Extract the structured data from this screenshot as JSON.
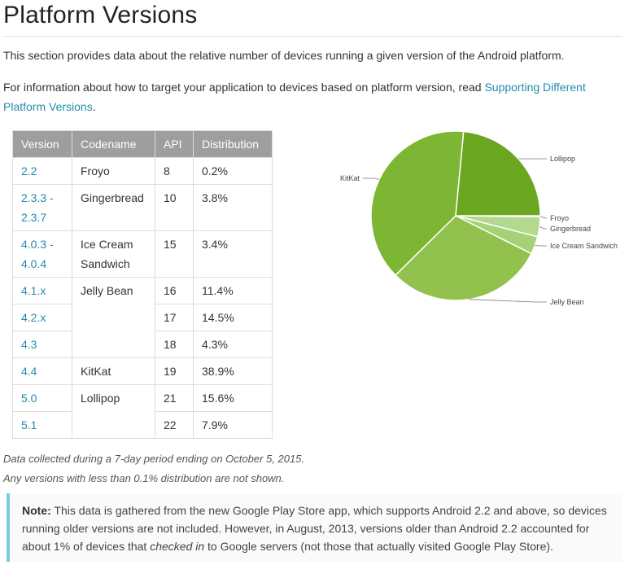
{
  "page": {
    "title": "Platform Versions",
    "intro": "This section provides data about the relative number of devices running a given version of the Android platform.",
    "target_text": "For information about how to target your application to devices based on platform version, read ",
    "target_link": "Supporting Different Platform Versions",
    "target_end": "."
  },
  "table": {
    "headers": [
      "Version",
      "Codename",
      "API",
      "Distribution"
    ],
    "rows": [
      {
        "version": "2.2",
        "codename": "Froyo",
        "api": "8",
        "dist": "0.2%"
      },
      {
        "version_a": "2.3.3 -",
        "version_b": "2.3.7",
        "codename": "Gingerbread",
        "api": "10",
        "dist": "3.8%"
      },
      {
        "version_a": "4.0.3 -",
        "version_b": "4.0.4",
        "codename_a": "Ice Cream",
        "codename_b": "Sandwich",
        "api": "15",
        "dist": "3.4%"
      },
      {
        "version": "4.1.x",
        "codename": "Jelly Bean",
        "api": "16",
        "dist": "11.4%"
      },
      {
        "version": "4.2.x",
        "api": "17",
        "dist": "14.5%"
      },
      {
        "version": "4.3",
        "api": "18",
        "dist": "4.3%"
      },
      {
        "version": "4.4",
        "codename": "KitKat",
        "api": "19",
        "dist": "38.9%"
      },
      {
        "version": "5.0",
        "codename": "Lollipop",
        "api": "21",
        "dist": "15.6%"
      },
      {
        "version": "5.1",
        "api": "22",
        "dist": "7.9%"
      }
    ]
  },
  "notes": {
    "collected": "Data collected during a 7-day period ending on October 5, 2015.",
    "threshold": "Any versions with less than 0.1% distribution are not shown."
  },
  "callout": {
    "label": "Note:",
    "text1": " This data is gathered from the new Google Play Store app, which supports Android 2.2 and above, so devices running older versions are not included. However, in August, 2013, versions older than Android 2.2 accounted for about 1% of devices that ",
    "em": "checked in",
    "text2": " to Google servers (not those that actually visited Google Play Store)."
  },
  "chart_data": {
    "type": "pie",
    "labels": [
      "Froyo",
      "Gingerbread",
      "Ice Cream Sandwich",
      "Jelly Bean",
      "KitKat",
      "Lollipop"
    ],
    "values": [
      0.2,
      3.8,
      3.4,
      30.2,
      38.9,
      23.5
    ],
    "colors": [
      "#c1e2a0",
      "#b4d98e",
      "#a6d175",
      "#92c14e",
      "#7cb633",
      "#6ba621"
    ]
  }
}
